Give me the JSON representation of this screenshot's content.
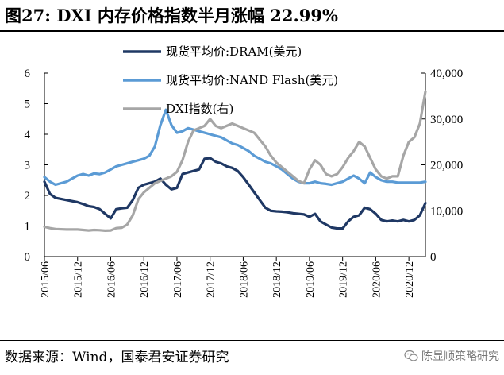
{
  "title": "图27: DXI 内存价格指数半月涨幅 22.99%",
  "source": "数据来源：Wind，国泰君安证券研究",
  "watermark": "陈显顺策略研究",
  "chart_data": {
    "type": "line",
    "x_ticks": [
      "2015/06",
      "2015/12",
      "2016/06",
      "2016/12",
      "2017/06",
      "2017/12",
      "2018/06",
      "2018/12",
      "2019/06",
      "2019/12",
      "2020/06",
      "2020/12"
    ],
    "x_range": [
      "2015/06",
      "2021/03"
    ],
    "y_left": {
      "ticks": [
        "0",
        "1",
        "2",
        "3",
        "4",
        "5",
        "6"
      ],
      "ylim": [
        0,
        6
      ]
    },
    "y_right": {
      "ticks": [
        "0",
        "10,000",
        "20,000",
        "30,000",
        "40,000"
      ],
      "ylim": [
        0,
        40000
      ]
    },
    "legend": "top-left",
    "grid": false,
    "series": [
      {
        "name": "现货平均价:DRAM(美元)",
        "axis": "left",
        "color": "#1f3864",
        "points": [
          [
            "2015-06",
            2.45
          ],
          [
            "2015-07",
            2.05
          ],
          [
            "2015-08",
            1.92
          ],
          [
            "2015-10",
            1.85
          ],
          [
            "2015-12",
            1.78
          ],
          [
            "2016-01",
            1.72
          ],
          [
            "2016-02",
            1.65
          ],
          [
            "2016-03",
            1.62
          ],
          [
            "2016-04",
            1.55
          ],
          [
            "2016-05",
            1.4
          ],
          [
            "2016-06",
            1.25
          ],
          [
            "2016-07",
            1.55
          ],
          [
            "2016-08",
            1.58
          ],
          [
            "2016-09",
            1.6
          ],
          [
            "2016-10",
            1.85
          ],
          [
            "2016-11",
            2.25
          ],
          [
            "2016-12",
            2.35
          ],
          [
            "2017-01",
            2.4
          ],
          [
            "2017-02",
            2.45
          ],
          [
            "2017-03",
            2.55
          ],
          [
            "2017-04",
            2.35
          ],
          [
            "2017-05",
            2.2
          ],
          [
            "2017-06",
            2.25
          ],
          [
            "2017-07",
            2.7
          ],
          [
            "2017-08",
            2.75
          ],
          [
            "2017-09",
            2.8
          ],
          [
            "2017-10",
            2.85
          ],
          [
            "2017-11",
            3.2
          ],
          [
            "2017-12",
            3.22
          ],
          [
            "2018-01",
            3.1
          ],
          [
            "2018-02",
            3.05
          ],
          [
            "2018-03",
            2.95
          ],
          [
            "2018-04",
            2.9
          ],
          [
            "2018-05",
            2.8
          ],
          [
            "2018-06",
            2.6
          ],
          [
            "2018-07",
            2.35
          ],
          [
            "2018-08",
            2.1
          ],
          [
            "2018-09",
            1.85
          ],
          [
            "2018-10",
            1.6
          ],
          [
            "2018-11",
            1.5
          ],
          [
            "2018-12",
            1.48
          ],
          [
            "2019-01",
            1.47
          ],
          [
            "2019-02",
            1.45
          ],
          [
            "2019-03",
            1.42
          ],
          [
            "2019-04",
            1.4
          ],
          [
            "2019-05",
            1.38
          ],
          [
            "2019-06",
            1.3
          ],
          [
            "2019-07",
            1.4
          ],
          [
            "2019-08",
            1.15
          ],
          [
            "2019-09",
            1.05
          ],
          [
            "2019-10",
            0.95
          ],
          [
            "2019-11",
            0.92
          ],
          [
            "2019-12",
            0.92
          ],
          [
            "2020-01",
            1.15
          ],
          [
            "2020-02",
            1.3
          ],
          [
            "2020-03",
            1.35
          ],
          [
            "2020-04",
            1.6
          ],
          [
            "2020-05",
            1.55
          ],
          [
            "2020-06",
            1.4
          ],
          [
            "2020-07",
            1.2
          ],
          [
            "2020-08",
            1.15
          ],
          [
            "2020-09",
            1.18
          ],
          [
            "2020-10",
            1.15
          ],
          [
            "2020-11",
            1.2
          ],
          [
            "2020-12",
            1.15
          ],
          [
            "2021-01",
            1.2
          ],
          [
            "2021-02",
            1.35
          ],
          [
            "2021-03",
            1.75
          ]
        ]
      },
      {
        "name": "现货平均价:NAND Flash(美元)",
        "axis": "left",
        "color": "#5b9bd5",
        "points": [
          [
            "2015-06",
            2.6
          ],
          [
            "2015-07",
            2.45
          ],
          [
            "2015-08",
            2.35
          ],
          [
            "2015-10",
            2.45
          ],
          [
            "2015-12",
            2.65
          ],
          [
            "2016-01",
            2.7
          ],
          [
            "2016-02",
            2.65
          ],
          [
            "2016-03",
            2.72
          ],
          [
            "2016-04",
            2.7
          ],
          [
            "2016-05",
            2.75
          ],
          [
            "2016-06",
            2.85
          ],
          [
            "2016-07",
            2.95
          ],
          [
            "2016-08",
            3.0
          ],
          [
            "2016-09",
            3.05
          ],
          [
            "2016-10",
            3.1
          ],
          [
            "2016-11",
            3.15
          ],
          [
            "2016-12",
            3.2
          ],
          [
            "2017-01",
            3.3
          ],
          [
            "2017-02",
            3.6
          ],
          [
            "2017-03",
            4.3
          ],
          [
            "2017-04",
            4.8
          ],
          [
            "2017-05",
            4.3
          ],
          [
            "2017-06",
            4.05
          ],
          [
            "2017-07",
            4.1
          ],
          [
            "2017-08",
            4.2
          ],
          [
            "2017-09",
            4.15
          ],
          [
            "2017-10",
            4.1
          ],
          [
            "2017-11",
            4.05
          ],
          [
            "2017-12",
            4.0
          ],
          [
            "2018-01",
            3.95
          ],
          [
            "2018-02",
            3.9
          ],
          [
            "2018-03",
            3.8
          ],
          [
            "2018-04",
            3.7
          ],
          [
            "2018-05",
            3.65
          ],
          [
            "2018-06",
            3.55
          ],
          [
            "2018-07",
            3.45
          ],
          [
            "2018-08",
            3.3
          ],
          [
            "2018-09",
            3.2
          ],
          [
            "2018-10",
            3.1
          ],
          [
            "2018-11",
            3.05
          ],
          [
            "2018-12",
            2.95
          ],
          [
            "2019-01",
            2.85
          ],
          [
            "2019-02",
            2.7
          ],
          [
            "2019-03",
            2.55
          ],
          [
            "2019-04",
            2.45
          ],
          [
            "2019-05",
            2.4
          ],
          [
            "2019-06",
            2.4
          ],
          [
            "2019-07",
            2.45
          ],
          [
            "2019-08",
            2.4
          ],
          [
            "2019-09",
            2.38
          ],
          [
            "2019-10",
            2.35
          ],
          [
            "2019-11",
            2.4
          ],
          [
            "2019-12",
            2.45
          ],
          [
            "2020-01",
            2.55
          ],
          [
            "2020-02",
            2.65
          ],
          [
            "2020-03",
            2.55
          ],
          [
            "2020-04",
            2.4
          ],
          [
            "2020-05",
            2.75
          ],
          [
            "2020-06",
            2.6
          ],
          [
            "2020-07",
            2.5
          ],
          [
            "2020-08",
            2.45
          ],
          [
            "2020-09",
            2.45
          ],
          [
            "2020-10",
            2.42
          ],
          [
            "2020-11",
            2.42
          ],
          [
            "2020-12",
            2.42
          ],
          [
            "2021-01",
            2.42
          ],
          [
            "2021-02",
            2.42
          ],
          [
            "2021-03",
            2.45
          ]
        ]
      },
      {
        "name": "DXI指数(右)",
        "axis": "right",
        "color": "#a6a6a6",
        "points": [
          [
            "2015-06",
            6500
          ],
          [
            "2015-07",
            6200
          ],
          [
            "2015-08",
            6000
          ],
          [
            "2015-10",
            5900
          ],
          [
            "2015-12",
            5900
          ],
          [
            "2016-01",
            5800
          ],
          [
            "2016-02",
            5700
          ],
          [
            "2016-03",
            5800
          ],
          [
            "2016-04",
            5750
          ],
          [
            "2016-05",
            5650
          ],
          [
            "2016-06",
            5700
          ],
          [
            "2016-07",
            6200
          ],
          [
            "2016-08",
            6300
          ],
          [
            "2016-09",
            7000
          ],
          [
            "2016-10",
            9000
          ],
          [
            "2016-11",
            12500
          ],
          [
            "2016-12",
            14000
          ],
          [
            "2017-01",
            15000
          ],
          [
            "2017-02",
            16000
          ],
          [
            "2017-03",
            16500
          ],
          [
            "2017-04",
            17000
          ],
          [
            "2017-05",
            17500
          ],
          [
            "2017-06",
            18500
          ],
          [
            "2017-07",
            21000
          ],
          [
            "2017-08",
            25000
          ],
          [
            "2017-09",
            27500
          ],
          [
            "2017-10",
            28000
          ],
          [
            "2017-11",
            28500
          ],
          [
            "2017-12",
            30000
          ],
          [
            "2018-01",
            28500
          ],
          [
            "2018-02",
            28000
          ],
          [
            "2018-03",
            28500
          ],
          [
            "2018-04",
            29000
          ],
          [
            "2018-05",
            28500
          ],
          [
            "2018-06",
            28000
          ],
          [
            "2018-07",
            27500
          ],
          [
            "2018-08",
            27000
          ],
          [
            "2018-09",
            25500
          ],
          [
            "2018-10",
            24000
          ],
          [
            "2018-11",
            22000
          ],
          [
            "2018-12",
            20500
          ],
          [
            "2019-01",
            19500
          ],
          [
            "2019-02",
            18500
          ],
          [
            "2019-03",
            17500
          ],
          [
            "2019-04",
            16500
          ],
          [
            "2019-05",
            16000
          ],
          [
            "2019-06",
            19000
          ],
          [
            "2019-07",
            21000
          ],
          [
            "2019-08",
            20000
          ],
          [
            "2019-09",
            18000
          ],
          [
            "2019-10",
            17500
          ],
          [
            "2019-11",
            18000
          ],
          [
            "2019-12",
            19500
          ],
          [
            "2020-01",
            21500
          ],
          [
            "2020-02",
            23000
          ],
          [
            "2020-03",
            25000
          ],
          [
            "2020-04",
            24000
          ],
          [
            "2020-05",
            21500
          ],
          [
            "2020-06",
            19000
          ],
          [
            "2020-07",
            17500
          ],
          [
            "2020-08",
            17000
          ],
          [
            "2020-09",
            17500
          ],
          [
            "2020-10",
            17500
          ],
          [
            "2020-11",
            22000
          ],
          [
            "2020-12",
            25000
          ],
          [
            "2021-01",
            26000
          ],
          [
            "2021-02",
            29000
          ],
          [
            "2021-03",
            36000
          ]
        ]
      }
    ]
  }
}
